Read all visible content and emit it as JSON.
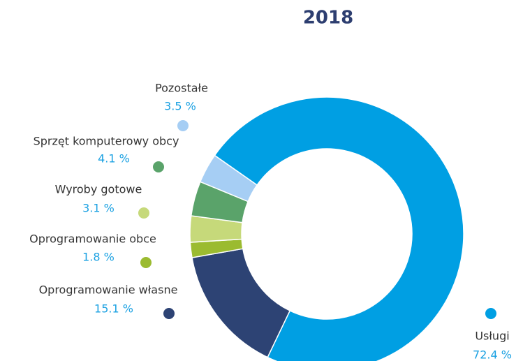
{
  "chart_data": {
    "type": "donut",
    "title": "2018",
    "categories": [
      "Usługi",
      "Oprogramowanie własne",
      "Oprogramowanie obce",
      "Wyroby gotowe",
      "Sprzęt komputerowy obcy",
      "Pozostałe"
    ],
    "values": [
      72.4,
      15.1,
      1.8,
      3.1,
      4.1,
      3.5
    ],
    "value_labels": [
      "72.4 %",
      "15.1 %",
      "1.8 %",
      "3.1 %",
      "4.1 %",
      "3.5 %"
    ],
    "colors": [
      "#009fe3",
      "#2d4374",
      "#9bbb30",
      "#c6d97a",
      "#5aa36a",
      "#a6cef4"
    ]
  }
}
